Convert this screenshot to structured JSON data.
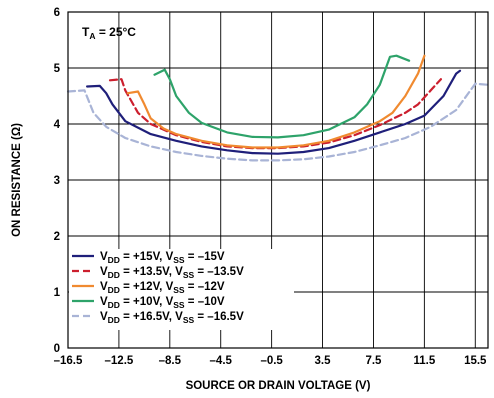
{
  "chart_data": {
    "type": "line",
    "xlabel": "SOURCE OR DRAIN VOLTAGE (V)",
    "ylabel": "ON RESISTANCE (Ω)",
    "xlim": [
      -16.5,
      16.5
    ],
    "ylim": [
      0,
      6
    ],
    "x_ticks": [
      "–16.5",
      "–12.5",
      "–8.5",
      "–4.5",
      "–0.5",
      "3.5",
      "7.5",
      "11.5",
      "15.5"
    ],
    "y_ticks": [
      "0",
      "1",
      "2",
      "3",
      "4",
      "5",
      "6"
    ],
    "grid": true,
    "annotation": {
      "main": "T",
      "sub": "A",
      "rest": " = 25°C"
    },
    "legend_placement": "bottom-left",
    "series": [
      {
        "name": "V_DD = +15V, V_SS = –15V",
        "legend": {
          "a": "V",
          "a_sub": "DD",
          "b": " = +15V, V",
          "b_sub": "SS",
          "c": " = –15V"
        },
        "color": "#1f1f7a",
        "dash": "solid",
        "points": [
          [
            -15,
            4.67
          ],
          [
            -14,
            4.68
          ],
          [
            -13.5,
            4.55
          ],
          [
            -13,
            4.35
          ],
          [
            -12,
            4.05
          ],
          [
            -10,
            3.82
          ],
          [
            -8,
            3.7
          ],
          [
            -6,
            3.6
          ],
          [
            -4,
            3.53
          ],
          [
            -2,
            3.48
          ],
          [
            0,
            3.47
          ],
          [
            2,
            3.5
          ],
          [
            4,
            3.57
          ],
          [
            6,
            3.7
          ],
          [
            8,
            3.85
          ],
          [
            10,
            4.0
          ],
          [
            11.5,
            4.15
          ],
          [
            13,
            4.5
          ],
          [
            14,
            4.9
          ],
          [
            14.3,
            4.95
          ]
        ]
      },
      {
        "name": "V_DD = +13.5V, V_SS = –13.5V",
        "legend": {
          "a": "V",
          "a_sub": "DD",
          "b": " = +13.5V, V",
          "b_sub": "SS",
          "c": " = –13.5V"
        },
        "color": "#cc1f2e",
        "dash": "7,4",
        "points": [
          [
            -13.2,
            4.78
          ],
          [
            -12.3,
            4.8
          ],
          [
            -12,
            4.6
          ],
          [
            -11,
            4.2
          ],
          [
            -10,
            4.0
          ],
          [
            -8,
            3.8
          ],
          [
            -6,
            3.68
          ],
          [
            -4,
            3.6
          ],
          [
            -2,
            3.57
          ],
          [
            0,
            3.57
          ],
          [
            2,
            3.6
          ],
          [
            4,
            3.67
          ],
          [
            6,
            3.8
          ],
          [
            8,
            3.98
          ],
          [
            10,
            4.2
          ],
          [
            11,
            4.35
          ],
          [
            12,
            4.6
          ],
          [
            12.8,
            4.8
          ]
        ]
      },
      {
        "name": "V_DD = +12V, V_SS = –12V",
        "legend": {
          "a": "V",
          "a_sub": "DD",
          "b": " = +12V, V",
          "b_sub": "SS",
          "c": " = –12V"
        },
        "color": "#f08a30",
        "dash": "solid",
        "points": [
          [
            -11.8,
            4.55
          ],
          [
            -11,
            4.58
          ],
          [
            -10.5,
            4.35
          ],
          [
            -10,
            4.1
          ],
          [
            -9,
            3.92
          ],
          [
            -8,
            3.82
          ],
          [
            -6,
            3.7
          ],
          [
            -4,
            3.62
          ],
          [
            -2,
            3.58
          ],
          [
            0,
            3.58
          ],
          [
            2,
            3.62
          ],
          [
            4,
            3.7
          ],
          [
            6,
            3.85
          ],
          [
            8,
            4.05
          ],
          [
            9,
            4.2
          ],
          [
            10,
            4.5
          ],
          [
            11,
            4.9
          ],
          [
            11.5,
            5.22
          ]
        ]
      },
      {
        "name": "V_DD = +10V, V_SS = –10V",
        "legend": {
          "a": "V",
          "a_sub": "DD",
          "b": " = +10V, V",
          "b_sub": "SS",
          "c": " = –10V"
        },
        "color": "#2ea36a",
        "dash": "solid",
        "points": [
          [
            -9.7,
            4.88
          ],
          [
            -8.9,
            4.97
          ],
          [
            -8.5,
            4.8
          ],
          [
            -8,
            4.5
          ],
          [
            -7,
            4.2
          ],
          [
            -6,
            4.02
          ],
          [
            -4,
            3.85
          ],
          [
            -2,
            3.77
          ],
          [
            0,
            3.76
          ],
          [
            2,
            3.8
          ],
          [
            4,
            3.9
          ],
          [
            6,
            4.12
          ],
          [
            7,
            4.35
          ],
          [
            8,
            4.7
          ],
          [
            8.8,
            5.2
          ],
          [
            9.3,
            5.22
          ],
          [
            10.3,
            5.13
          ]
        ]
      },
      {
        "name": "V_DD = +16.5V, V_SS = –16.5V",
        "legend": {
          "a": "V",
          "a_sub": "DD",
          "b": " = +16.5V, V",
          "b_sub": "SS",
          "c": " = –16.5V"
        },
        "color": "#a9b4d6",
        "dash": "7,4",
        "points": [
          [
            -16.5,
            4.58
          ],
          [
            -15.2,
            4.6
          ],
          [
            -14.5,
            4.2
          ],
          [
            -13.5,
            3.95
          ],
          [
            -12,
            3.75
          ],
          [
            -10,
            3.6
          ],
          [
            -8,
            3.5
          ],
          [
            -6,
            3.43
          ],
          [
            -4,
            3.38
          ],
          [
            -2,
            3.35
          ],
          [
            0,
            3.35
          ],
          [
            2,
            3.37
          ],
          [
            4,
            3.42
          ],
          [
            6,
            3.5
          ],
          [
            8,
            3.62
          ],
          [
            10,
            3.75
          ],
          [
            12,
            3.95
          ],
          [
            14,
            4.25
          ],
          [
            15.5,
            4.72
          ],
          [
            16.5,
            4.7
          ]
        ]
      }
    ]
  }
}
